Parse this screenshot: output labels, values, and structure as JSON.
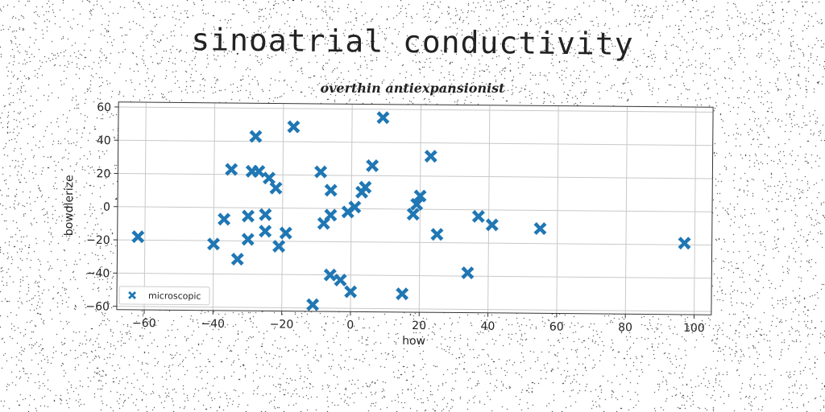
{
  "chart_data": {
    "type": "scatter",
    "title": "sinoatrial conductivity",
    "subtitle": "overthin antiexpansionist",
    "xlabel": "how",
    "ylabel": "bowdlerize",
    "xlim": [
      -68,
      105
    ],
    "ylim": [
      -62,
      63
    ],
    "xticks": [
      -60,
      -40,
      -20,
      0,
      20,
      40,
      60,
      80,
      100
    ],
    "yticks": [
      -60,
      -40,
      -20,
      0,
      20,
      40,
      60
    ],
    "grid": true,
    "legend_position": "lower-left",
    "series": [
      {
        "name": "microscopic",
        "color": "#1f77b4",
        "marker": "x-filled",
        "points": [
          [
            -62,
            -18
          ],
          [
            -40,
            -22
          ],
          [
            -37,
            -7
          ],
          [
            -35,
            23
          ],
          [
            -33,
            -31
          ],
          [
            -30,
            -19
          ],
          [
            -30,
            -5
          ],
          [
            -29,
            22
          ],
          [
            -28,
            43
          ],
          [
            -27,
            22
          ],
          [
            -25,
            -14
          ],
          [
            -25,
            -4
          ],
          [
            -24,
            18
          ],
          [
            -22,
            12
          ],
          [
            -21,
            -23
          ],
          [
            -19,
            -15
          ],
          [
            -17,
            49
          ],
          [
            -11,
            -58
          ],
          [
            -9,
            22
          ],
          [
            -8,
            -9
          ],
          [
            -6,
            -4
          ],
          [
            -6,
            11
          ],
          [
            -6,
            -40
          ],
          [
            -3,
            -43
          ],
          [
            -1,
            -2
          ],
          [
            0,
            -50
          ],
          [
            1,
            1
          ],
          [
            3,
            10
          ],
          [
            4,
            13
          ],
          [
            6,
            26
          ],
          [
            9,
            55
          ],
          [
            15,
            -51
          ],
          [
            18,
            -3
          ],
          [
            19,
            3
          ],
          [
            20,
            8
          ],
          [
            23,
            32
          ],
          [
            25,
            -15
          ],
          [
            34,
            -38
          ],
          [
            37,
            -4
          ],
          [
            41,
            -9
          ],
          [
            55,
            -11
          ],
          [
            97,
            -19
          ]
        ]
      }
    ]
  }
}
